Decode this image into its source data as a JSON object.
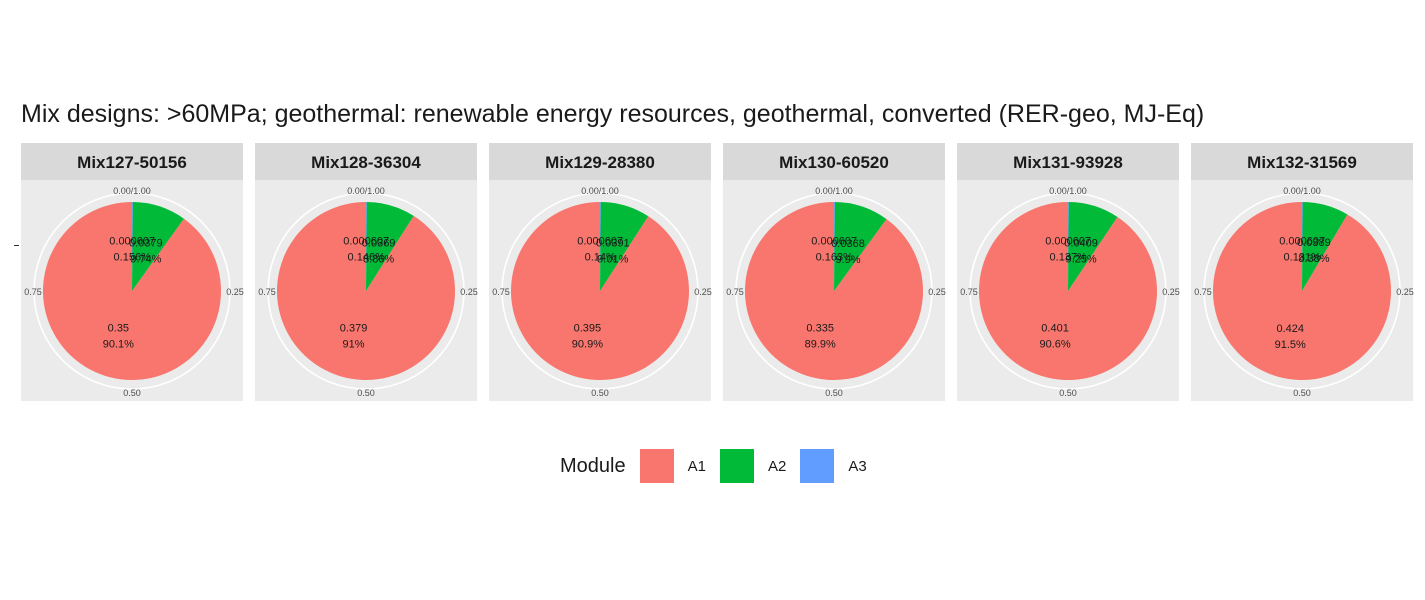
{
  "chart_data": {
    "type": "pie",
    "title": "Mix designs: >60MPa; geothermal: renewable energy resources, geothermal, converted (RER-geo, MJ-Eq)",
    "legend": {
      "title": "Module",
      "position": "bottom",
      "entries": [
        {
          "label": "A1",
          "color": "#F8766D"
        },
        {
          "label": "A2",
          "color": "#00BA38"
        },
        {
          "label": "A3",
          "color": "#619CFF"
        }
      ]
    },
    "polar_ticks": [
      "0.00/1.00",
      "0.25",
      "0.50",
      "0.75"
    ],
    "series_order": [
      "A1",
      "A2",
      "A3"
    ],
    "panels": [
      {
        "name": "Mix127-50156",
        "slices": [
          {
            "module": "A1",
            "value": 0.35,
            "value_label": "0.35",
            "pct_label": "90.1%"
          },
          {
            "module": "A2",
            "value": 0.0379,
            "value_label": "0.0379",
            "pct_label": "9.74%"
          },
          {
            "module": "A3",
            "value": 0.000607,
            "value_label": "0.000607",
            "pct_label": "0.156%"
          }
        ]
      },
      {
        "name": "Mix128-36304",
        "slices": [
          {
            "module": "A1",
            "value": 0.379,
            "value_label": "0.379",
            "pct_label": "91%"
          },
          {
            "module": "A2",
            "value": 0.0369,
            "value_label": "0.0369",
            "pct_label": "8.86%"
          },
          {
            "module": "A3",
            "value": 0.000607,
            "value_label": "0.000607",
            "pct_label": "0.146%"
          }
        ]
      },
      {
        "name": "Mix129-28380",
        "slices": [
          {
            "module": "A1",
            "value": 0.395,
            "value_label": "0.395",
            "pct_label": "90.9%"
          },
          {
            "module": "A2",
            "value": 0.0391,
            "value_label": "0.0391",
            "pct_label": "9.01%"
          },
          {
            "module": "A3",
            "value": 0.000607,
            "value_label": "0.000607",
            "pct_label": "0.14%"
          }
        ]
      },
      {
        "name": "Mix130-60520",
        "slices": [
          {
            "module": "A1",
            "value": 0.335,
            "value_label": "0.335",
            "pct_label": "89.9%"
          },
          {
            "module": "A2",
            "value": 0.0368,
            "value_label": "0.0368",
            "pct_label": "9.9%"
          },
          {
            "module": "A3",
            "value": 0.000607,
            "value_label": "0.000607",
            "pct_label": "0.163%"
          }
        ]
      },
      {
        "name": "Mix131-93928",
        "slices": [
          {
            "module": "A1",
            "value": 0.401,
            "value_label": "0.401",
            "pct_label": "90.6%"
          },
          {
            "module": "A2",
            "value": 0.0409,
            "value_label": "0.0409",
            "pct_label": "9.25%"
          },
          {
            "module": "A3",
            "value": 0.000607,
            "value_label": "0.000607",
            "pct_label": "0.137%"
          }
        ]
      },
      {
        "name": "Mix132-31569",
        "slices": [
          {
            "module": "A1",
            "value": 0.424,
            "value_label": "0.424",
            "pct_label": "91.5%"
          },
          {
            "module": "A2",
            "value": 0.0389,
            "value_label": "0.0389",
            "pct_label": "8.38%"
          },
          {
            "module": "A3",
            "value": 0.000607,
            "value_label": "0.000607",
            "pct_label": "0.131%"
          }
        ]
      }
    ]
  }
}
